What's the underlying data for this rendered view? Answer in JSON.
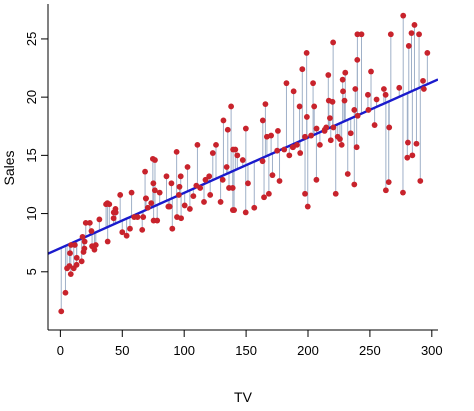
{
  "chart_data": {
    "type": "scatter",
    "title": "",
    "xlabel": "TV",
    "ylabel": "Sales",
    "xlim": [
      -10,
      305
    ],
    "ylim": [
      0,
      28
    ],
    "xticks": [
      0,
      50,
      100,
      150,
      200,
      250,
      300
    ],
    "yticks": [
      5,
      10,
      15,
      20,
      25
    ],
    "xtick_labels": [
      "0",
      "50",
      "100",
      "150",
      "200",
      "250",
      "300"
    ],
    "ytick_labels": [
      "5",
      "10",
      "15",
      "20",
      "25"
    ],
    "grid": false,
    "legend": "none",
    "regression_line": {
      "intercept": 7.03,
      "slope": 0.0475,
      "color": "#1a1acc"
    },
    "point_color": "#c8232c",
    "residual_color": "#9fb0c8",
    "points": [
      [
        0.7,
        1.6
      ],
      [
        4.1,
        3.2
      ],
      [
        5.4,
        5.3
      ],
      [
        7.3,
        5.5
      ],
      [
        7.8,
        6.6
      ],
      [
        8.4,
        4.8
      ],
      [
        8.6,
        7.3
      ],
      [
        10.8,
        5.3
      ],
      [
        11.7,
        7.3
      ],
      [
        13.1,
        5.6
      ],
      [
        13.2,
        6.2
      ],
      [
        17.2,
        5.9
      ],
      [
        17.9,
        8.0
      ],
      [
        18.7,
        6.7
      ],
      [
        19.4,
        7.0
      ],
      [
        19.6,
        7.6
      ],
      [
        20.5,
        9.2
      ],
      [
        23.8,
        9.2
      ],
      [
        25.1,
        8.5
      ],
      [
        25.6,
        7.2
      ],
      [
        27.5,
        6.9
      ],
      [
        28.6,
        7.3
      ],
      [
        31.5,
        9.5
      ],
      [
        36.9,
        10.8
      ],
      [
        38.0,
        10.9
      ],
      [
        38.2,
        7.6
      ],
      [
        39.5,
        10.8
      ],
      [
        43.0,
        9.6
      ],
      [
        43.1,
        10.1
      ],
      [
        44.5,
        10.4
      ],
      [
        44.7,
        10.1
      ],
      [
        48.3,
        11.6
      ],
      [
        50.0,
        8.4
      ],
      [
        53.5,
        8.1
      ],
      [
        56.2,
        8.7
      ],
      [
        57.5,
        11.8
      ],
      [
        59.6,
        9.7
      ],
      [
        62.3,
        9.7
      ],
      [
        66.1,
        8.6
      ],
      [
        66.9,
        9.7
      ],
      [
        68.4,
        13.6
      ],
      [
        69.0,
        11.3
      ],
      [
        69.2,
        11.3
      ],
      [
        70.6,
        10.5
      ],
      [
        73.4,
        10.9
      ],
      [
        74.7,
        14.7
      ],
      [
        75.1,
        12.6
      ],
      [
        75.3,
        9.4
      ],
      [
        76.3,
        12.0
      ],
      [
        76.4,
        14.6
      ],
      [
        78.2,
        9.4
      ],
      [
        80.2,
        11.8
      ],
      [
        85.7,
        13.2
      ],
      [
        87.2,
        10.6
      ],
      [
        88.3,
        10.6
      ],
      [
        89.7,
        12.6
      ],
      [
        90.4,
        8.7
      ],
      [
        93.9,
        15.3
      ],
      [
        94.2,
        9.7
      ],
      [
        95.7,
        11.6
      ],
      [
        96.2,
        12.3
      ],
      [
        97.2,
        13.2
      ],
      [
        97.5,
        9.6
      ],
      [
        100.4,
        10.7
      ],
      [
        102.7,
        14.0
      ],
      [
        104.6,
        10.4
      ],
      [
        107.4,
        11.5
      ],
      [
        109.8,
        12.4
      ],
      [
        110.7,
        15.9
      ],
      [
        112.9,
        12.2
      ],
      [
        116.0,
        11.0
      ],
      [
        117.2,
        12.9
      ],
      [
        120.2,
        13.2
      ],
      [
        121.0,
        11.6
      ],
      [
        123.1,
        15.2
      ],
      [
        125.7,
        15.9
      ],
      [
        129.4,
        11.0
      ],
      [
        131.1,
        12.9
      ],
      [
        131.7,
        18.0
      ],
      [
        134.3,
        14.0
      ],
      [
        135.2,
        17.2
      ],
      [
        136.2,
        12.2
      ],
      [
        137.9,
        19.2
      ],
      [
        139.2,
        12.2
      ],
      [
        139.3,
        10.3
      ],
      [
        139.5,
        15.5
      ],
      [
        140.3,
        10.3
      ],
      [
        141.3,
        15.5
      ],
      [
        142.9,
        15.0
      ],
      [
        147.3,
        14.6
      ],
      [
        149.7,
        10.1
      ],
      [
        149.8,
        17.3
      ],
      [
        151.5,
        12.6
      ],
      [
        156.6,
        10.5
      ],
      [
        163.3,
        14.5
      ],
      [
        163.5,
        18.0
      ],
      [
        164.5,
        11.4
      ],
      [
        165.6,
        19.4
      ],
      [
        166.8,
        16.6
      ],
      [
        168.4,
        11.7
      ],
      [
        170.2,
        16.7
      ],
      [
        171.3,
        13.3
      ],
      [
        175.1,
        15.4
      ],
      [
        175.7,
        17.1
      ],
      [
        177.0,
        12.8
      ],
      [
        180.8,
        15.5
      ],
      [
        182.6,
        21.2
      ],
      [
        184.9,
        15.0
      ],
      [
        187.7,
        15.7
      ],
      [
        187.9,
        15.7
      ],
      [
        188.4,
        20.5
      ],
      [
        191.1,
        15.9
      ],
      [
        193.2,
        19.2
      ],
      [
        193.7,
        15.2
      ],
      [
        195.4,
        22.4
      ],
      [
        197.6,
        11.7
      ],
      [
        197.6,
        16.6
      ],
      [
        198.9,
        23.8
      ],
      [
        199.1,
        18.3
      ],
      [
        199.8,
        10.6
      ],
      [
        202.5,
        16.7
      ],
      [
        204.1,
        21.2
      ],
      [
        205.0,
        19.2
      ],
      [
        206.8,
        12.9
      ],
      [
        206.9,
        17.3
      ],
      [
        209.6,
        15.9
      ],
      [
        213.4,
        17.1
      ],
      [
        213.5,
        17.2
      ],
      [
        214.7,
        17.4
      ],
      [
        216.4,
        21.9
      ],
      [
        216.8,
        19.7
      ],
      [
        217.7,
        18.2
      ],
      [
        218.4,
        16.3
      ],
      [
        219.8,
        19.6
      ],
      [
        220.3,
        24.7
      ],
      [
        220.5,
        17.4
      ],
      [
        222.4,
        11.7
      ],
      [
        224.0,
        16.6
      ],
      [
        225.8,
        16.4
      ],
      [
        227.2,
        15.9
      ],
      [
        228.0,
        21.5
      ],
      [
        228.3,
        20.5
      ],
      [
        229.5,
        19.7
      ],
      [
        230.1,
        22.1
      ],
      [
        232.1,
        13.4
      ],
      [
        234.5,
        16.9
      ],
      [
        237.4,
        12.5
      ],
      [
        237.4,
        18.9
      ],
      [
        238.2,
        20.7
      ],
      [
        239.3,
        15.7
      ],
      [
        239.8,
        23.2
      ],
      [
        239.9,
        25.4
      ],
      [
        240.1,
        18.4
      ],
      [
        243.2,
        25.4
      ],
      [
        248.4,
        20.2
      ],
      [
        248.8,
        18.9
      ],
      [
        250.9,
        22.2
      ],
      [
        253.8,
        17.6
      ],
      [
        255.4,
        19.8
      ],
      [
        261.3,
        20.7
      ],
      [
        262.7,
        20.2
      ],
      [
        262.9,
        12.0
      ],
      [
        265.2,
        12.7
      ],
      [
        265.6,
        17.4
      ],
      [
        266.9,
        25.4
      ],
      [
        273.7,
        20.8
      ],
      [
        276.7,
        11.8
      ],
      [
        276.9,
        27.0
      ],
      [
        280.2,
        14.8
      ],
      [
        280.7,
        16.1
      ],
      [
        281.4,
        24.4
      ],
      [
        283.6,
        25.5
      ],
      [
        284.3,
        15.0
      ],
      [
        286.0,
        26.2
      ],
      [
        287.6,
        16.0
      ],
      [
        289.7,
        25.4
      ],
      [
        290.7,
        12.8
      ],
      [
        292.9,
        21.4
      ],
      [
        293.6,
        20.7
      ],
      [
        296.4,
        23.8
      ]
    ]
  }
}
